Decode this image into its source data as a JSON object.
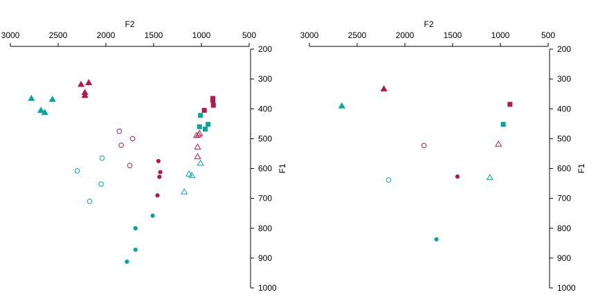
{
  "chart_data": [
    {
      "type": "scatter",
      "xlabel": "F2",
      "ylabel": "F1",
      "xlim": [
        3000,
        500
      ],
      "ylim": [
        200,
        1000
      ],
      "x_reversed": true,
      "y_reversed": true,
      "x_axis_position": "top",
      "y_axis_position": "right",
      "xticks": [
        "3000",
        "2500",
        "2000",
        "1500",
        "1000",
        "500"
      ],
      "yticks": [
        "200",
        "300",
        "400",
        "500",
        "600",
        "700",
        "800",
        "900",
        "1000"
      ],
      "grid": false,
      "series": [
        {
          "color": "#b5174e",
          "marker": "triangle",
          "filled": true,
          "points": [
            [
              2260,
              318
            ],
            [
              2180,
              312
            ],
            [
              2220,
              345
            ],
            [
              2220,
              355
            ]
          ]
        },
        {
          "color": "#00a89a",
          "marker": "triangle",
          "filled": true,
          "points": [
            [
              2780,
              365
            ],
            [
              2560,
              368
            ],
            [
              2680,
              405
            ],
            [
              2640,
              412
            ]
          ]
        },
        {
          "color": "#b5174e",
          "marker": "square",
          "filled": true,
          "points": [
            [
              880,
              365
            ],
            [
              880,
              372
            ],
            [
              875,
              388
            ],
            [
              970,
              405
            ]
          ]
        },
        {
          "color": "#00a89a",
          "marker": "square",
          "filled": true,
          "points": [
            [
              1010,
              422
            ],
            [
              930,
              452
            ],
            [
              1020,
              460
            ],
            [
              960,
              468
            ]
          ]
        },
        {
          "color": "#b5174e",
          "marker": "circle",
          "filled": false,
          "points": [
            [
              1860,
              475
            ],
            [
              1720,
              500
            ],
            [
              1840,
              522
            ],
            [
              1750,
              590
            ]
          ]
        },
        {
          "color": "#00a89a",
          "marker": "circle",
          "filled": false,
          "points": [
            [
              2040,
              565
            ],
            [
              2300,
              608
            ],
            [
              2050,
              652
            ],
            [
              2170,
              710
            ]
          ]
        },
        {
          "color": "#b5174e",
          "marker": "triangle",
          "filled": false,
          "points": [
            [
              1020,
              482
            ],
            [
              1030,
              487
            ],
            [
              1050,
              489
            ],
            [
              1040,
              528
            ],
            [
              1040,
              560
            ]
          ]
        },
        {
          "color": "#00a89a",
          "marker": "triangle",
          "filled": false,
          "points": [
            [
              1010,
              582
            ],
            [
              1130,
              618
            ],
            [
              1100,
              623
            ],
            [
              1180,
              678
            ]
          ]
        },
        {
          "color": "#b5174e",
          "marker": "circle",
          "filled": true,
          "points": [
            [
              1450,
              575
            ],
            [
              1430,
              612
            ],
            [
              1440,
              628
            ],
            [
              1460,
              690
            ]
          ]
        },
        {
          "color": "#00a89a",
          "marker": "circle",
          "filled": true,
          "points": [
            [
              1510,
              758
            ],
            [
              1690,
              800
            ],
            [
              1690,
              872
            ],
            [
              1780,
              912
            ]
          ]
        }
      ]
    },
    {
      "type": "scatter",
      "xlabel": "F2",
      "ylabel": "F1",
      "xlim": [
        3000,
        500
      ],
      "ylim": [
        200,
        1000
      ],
      "x_reversed": true,
      "y_reversed": true,
      "x_axis_position": "top",
      "y_axis_position": "right",
      "xticks": [
        "3000",
        "2500",
        "2000",
        "1500",
        "1000",
        "500"
      ],
      "yticks": [
        "200",
        "300",
        "400",
        "500",
        "600",
        "700",
        "800",
        "900",
        "1000"
      ],
      "grid": false,
      "series": [
        {
          "color": "#b5174e",
          "marker": "triangle",
          "filled": true,
          "points": [
            [
              2220,
              333
            ]
          ]
        },
        {
          "color": "#00a89a",
          "marker": "triangle",
          "filled": true,
          "points": [
            [
              2660,
              390
            ]
          ]
        },
        {
          "color": "#b5174e",
          "marker": "square",
          "filled": true,
          "points": [
            [
              900,
              385
            ]
          ]
        },
        {
          "color": "#00a89a",
          "marker": "square",
          "filled": true,
          "points": [
            [
              970,
              452
            ]
          ]
        },
        {
          "color": "#b5174e",
          "marker": "circle",
          "filled": false,
          "points": [
            [
              1800,
              523
            ]
          ]
        },
        {
          "color": "#b5174e",
          "marker": "triangle",
          "filled": false,
          "points": [
            [
              1020,
              518
            ]
          ]
        },
        {
          "color": "#00a89a",
          "marker": "circle",
          "filled": false,
          "points": [
            [
              2170,
              638
            ]
          ]
        },
        {
          "color": "#00a89a",
          "marker": "triangle",
          "filled": false,
          "points": [
            [
              1110,
              630
            ]
          ]
        },
        {
          "color": "#b5174e",
          "marker": "circle",
          "filled": true,
          "points": [
            [
              1450,
              627
            ]
          ]
        },
        {
          "color": "#00a89a",
          "marker": "circle",
          "filled": true,
          "points": [
            [
              1670,
              837
            ]
          ]
        }
      ]
    }
  ]
}
